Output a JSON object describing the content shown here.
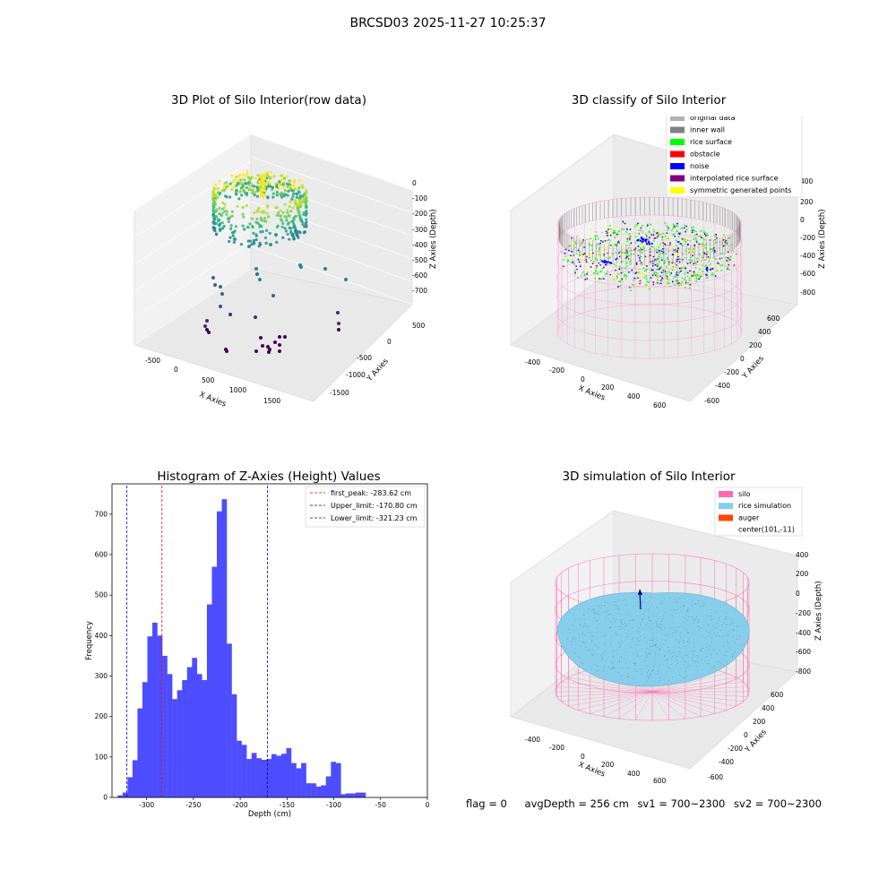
{
  "figure": {
    "suptitle": "BRCSD03 2025-11-27 10:25:37"
  },
  "status": {
    "flag": "flag = 0",
    "avg_depth": "avgDepth = 256 cm",
    "sv1": "sv1 = 700~2300",
    "sv2": "sv2 = 700~2300"
  },
  "colors": {
    "hist_bar": "#4d4dff",
    "first_peak_line": "#ff0000",
    "limit_line": "#0000cc",
    "silo": "#ff69b4",
    "rice_simulation": "#87ceeb",
    "auger": "#ff4500",
    "rice_surface": "#00ff00",
    "noise": "#0000ff",
    "interpolated": "#800080",
    "symmetric": "#ffff00",
    "original": "#b3b3b3",
    "inner_wall": "#808080"
  },
  "chart_data": [
    {
      "type": "scatter",
      "title": "3D Plot of Silo Interior(row data)",
      "xlabel": "X Axies",
      "ylabel": "Y Axies",
      "zlabel": "Z Axies (Depth)",
      "x_ticks": [
        "-500",
        "0",
        "500",
        "1000",
        "1500"
      ],
      "y_ticks": [
        "500",
        "0",
        "-500",
        "-1000",
        "-1500"
      ],
      "z_ticks": [
        "0",
        "-100",
        "-200",
        "-300",
        "-400",
        "-500",
        "-600",
        "-700"
      ],
      "colormap": "viridis"
    },
    {
      "type": "scatter",
      "title": "3D classify of Silo Interior",
      "xlabel": "X Axies",
      "ylabel": "Y Axies",
      "zlabel": "Z Axies (Depth)",
      "x_ticks": [
        "-400",
        "-200",
        "0",
        "200",
        "400",
        "600"
      ],
      "y_ticks": [
        "600",
        "400",
        "200",
        "0",
        "-200",
        "-400",
        "-600"
      ],
      "z_ticks": [
        "200",
        "0",
        "-200",
        "-400",
        "-600",
        "-800"
      ],
      "z_top_tick": "400",
      "legend": [
        {
          "label": "original data",
          "color": "#b3b3b3"
        },
        {
          "label": "inner wall",
          "color": "#808080"
        },
        {
          "label": "rice surface",
          "color": "#00ff00"
        },
        {
          "label": "obstacle",
          "color": "#ff0000"
        },
        {
          "label": "noise",
          "color": "#0000ff"
        },
        {
          "label": "interpolated rice surface",
          "color": "#800080"
        },
        {
          "label": "symmetric generated points",
          "color": "#ffff00"
        }
      ],
      "legend_loc": "upper right"
    },
    {
      "type": "bar",
      "title": "Histogram of Z-Axies (Height) Values",
      "xlabel": "Depth (cm)",
      "ylabel": "Frequency",
      "xlim": [
        -337,
        0
      ],
      "ylim": [
        0,
        775
      ],
      "x_ticks": [
        -300,
        -250,
        -200,
        -150,
        -100,
        -50,
        0
      ],
      "y_ticks": [
        0,
        100,
        200,
        300,
        400,
        500,
        600,
        700
      ],
      "bin_start": -331,
      "bin_width": 5.3,
      "values": [
        5,
        12,
        50,
        92,
        220,
        285,
        398,
        432,
        400,
        350,
        305,
        243,
        265,
        290,
        322,
        345,
        305,
        290,
        477,
        570,
        707,
        737,
        380,
        255,
        140,
        130,
        95,
        110,
        97,
        93,
        95,
        107,
        103,
        108,
        122,
        85,
        72,
        85,
        35,
        35,
        27,
        30,
        52,
        88,
        85,
        8,
        10,
        10,
        12,
        12
      ],
      "lines": [
        {
          "label": "first_peak: -283.62 cm",
          "x": -283.62,
          "color": "#ff0000"
        },
        {
          "label": "Upper_limit: -170.80 cm",
          "x": -170.8,
          "color": "#0000cc"
        },
        {
          "label": "Lower_limit: -321.23 cm",
          "x": -321.23,
          "color": "#0000cc"
        }
      ],
      "legend_loc": "upper right"
    },
    {
      "type": "scatter",
      "title": "3D simulation of Silo Interior",
      "xlabel": "X Axies",
      "ylabel": "Y Axies",
      "zlabel": "Z Axies (Depth)",
      "x_ticks": [
        "-400",
        "-200",
        "0",
        "200",
        "400",
        "600"
      ],
      "y_ticks": [
        "600",
        "400",
        "200",
        "0",
        "-200",
        "-400",
        "-600"
      ],
      "z_ticks": [
        "400",
        "200",
        "0",
        "-200",
        "-400",
        "-600",
        "-800"
      ],
      "legend": [
        {
          "label": "silo",
          "color": "#ff69b4"
        },
        {
          "label": "rice simulation",
          "color": "#87ceeb"
        },
        {
          "label": "auger",
          "color": "#ff4500"
        },
        {
          "label": "center(101,-11)",
          "color": ""
        }
      ],
      "legend_loc": "upper right"
    }
  ]
}
